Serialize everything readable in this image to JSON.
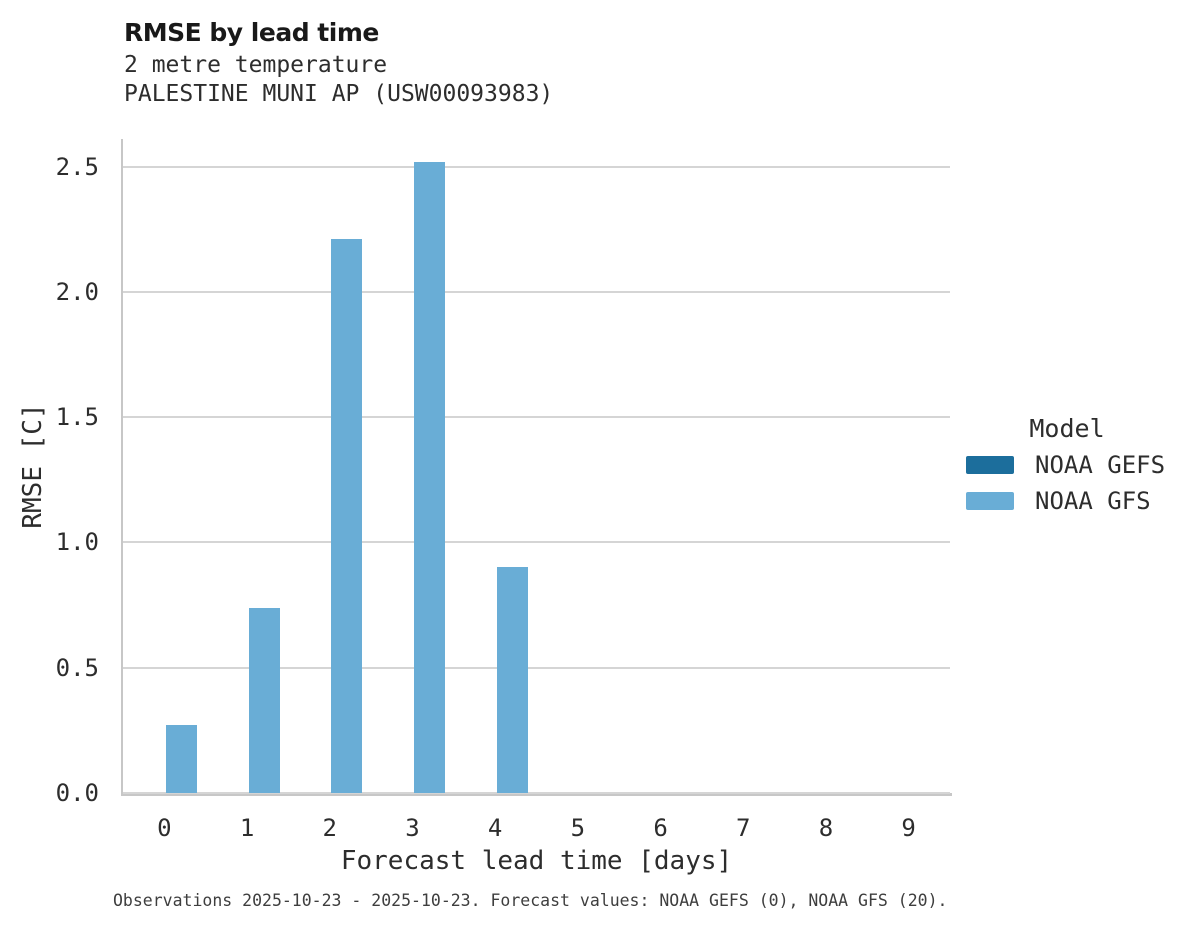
{
  "header": {
    "title": "RMSE by lead time",
    "subtitle_line1": "2 metre temperature",
    "subtitle_line2": "PALESTINE MUNI AP (USW00093983)"
  },
  "chart_data": {
    "type": "bar",
    "title": "RMSE by lead time",
    "subtitle": [
      "2 metre temperature",
      "PALESTINE MUNI AP (USW00093983)"
    ],
    "categories": [
      "0",
      "1",
      "2",
      "3",
      "4",
      "5",
      "6",
      "7",
      "8",
      "9"
    ],
    "series": [
      {
        "name": "NOAA GEFS",
        "color": "#1c6e9c",
        "values": [
          null,
          null,
          null,
          null,
          null,
          null,
          null,
          null,
          null,
          null
        ]
      },
      {
        "name": "NOAA GFS",
        "color": "#69add6",
        "values": [
          0.27,
          0.74,
          2.21,
          2.52,
          0.9,
          null,
          null,
          null,
          null,
          null
        ]
      }
    ],
    "xlabel": "Forecast lead time [days]",
    "ylabel": "RMSE [C]",
    "ylim": [
      0,
      2.61
    ],
    "yticks": [
      "0.0",
      "0.5",
      "1.0",
      "1.5",
      "2.0",
      "2.5"
    ],
    "grid": "horizontal",
    "legend": {
      "title": "Model",
      "position": "right",
      "entries": [
        "NOAA GEFS",
        "NOAA GFS"
      ]
    },
    "caption": "Observations 2025-10-23 - 2025-10-23. Forecast values: NOAA GEFS (0), NOAA GFS (20)."
  }
}
